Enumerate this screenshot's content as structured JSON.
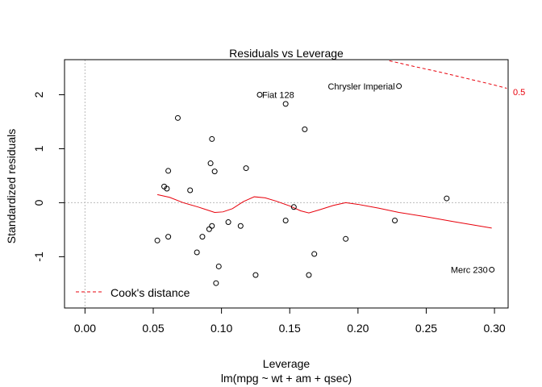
{
  "chart_data": {
    "type": "scatter",
    "title": "Residuals vs Leverage",
    "xlabel": "Leverage",
    "subtitle": "lm(mpg ~ wt + am + qsec)",
    "ylabel": "Standardized residuals",
    "xlim": [
      -0.015,
      0.31
    ],
    "ylim": [
      -1.95,
      2.65
    ],
    "x_ticks": [
      0.0,
      0.05,
      0.1,
      0.15,
      0.2,
      0.25,
      0.3
    ],
    "x_tick_labels": [
      "0.00",
      "0.05",
      "0.10",
      "0.15",
      "0.20",
      "0.25",
      "0.30"
    ],
    "y_ticks": [
      -1,
      0,
      1,
      2
    ],
    "y_tick_labels": [
      "-1",
      "0",
      "1",
      "2"
    ],
    "reference_lines": {
      "horizontal_y": 0,
      "vertical_x": 0
    },
    "grid": false,
    "legend": {
      "position": "bottom-left",
      "entries": [
        {
          "label": "Cook's distance",
          "style": "dashed",
          "color": "#e8000b"
        }
      ]
    },
    "colors": {
      "points": "#000000",
      "smoother": "#e8000b",
      "cooks": "#e8000b",
      "reference": "#bbbbbb"
    },
    "points": [
      {
        "x": 0.053,
        "y": -0.7
      },
      {
        "x": 0.058,
        "y": 0.3
      },
      {
        "x": 0.06,
        "y": 0.26
      },
      {
        "x": 0.061,
        "y": 0.59
      },
      {
        "x": 0.061,
        "y": -0.63
      },
      {
        "x": 0.068,
        "y": 1.57
      },
      {
        "x": 0.077,
        "y": 0.23
      },
      {
        "x": 0.082,
        "y": -0.92
      },
      {
        "x": 0.086,
        "y": -0.63
      },
      {
        "x": 0.091,
        "y": -0.49
      },
      {
        "x": 0.092,
        "y": 0.73
      },
      {
        "x": 0.093,
        "y": 1.18
      },
      {
        "x": 0.093,
        "y": -0.43
      },
      {
        "x": 0.095,
        "y": 0.58
      },
      {
        "x": 0.096,
        "y": -1.49
      },
      {
        "x": 0.098,
        "y": -1.18
      },
      {
        "x": 0.105,
        "y": -0.36
      },
      {
        "x": 0.114,
        "y": -0.43
      },
      {
        "x": 0.118,
        "y": 0.64
      },
      {
        "x": 0.125,
        "y": -1.34
      },
      {
        "x": 0.128,
        "y": 2.0,
        "label": "Fiat 128"
      },
      {
        "x": 0.147,
        "y": 1.83
      },
      {
        "x": 0.147,
        "y": -0.33
      },
      {
        "x": 0.153,
        "y": -0.08
      },
      {
        "x": 0.161,
        "y": 1.36
      },
      {
        "x": 0.164,
        "y": -1.34
      },
      {
        "x": 0.168,
        "y": -0.95
      },
      {
        "x": 0.191,
        "y": -0.67
      },
      {
        "x": 0.227,
        "y": -0.33
      },
      {
        "x": 0.23,
        "y": 2.16,
        "label": "Chrysler Imperial"
      },
      {
        "x": 0.265,
        "y": 0.08
      },
      {
        "x": 0.298,
        "y": -1.24,
        "label": "Merc 230"
      }
    ],
    "smoother": [
      {
        "x": 0.053,
        "y": 0.15
      },
      {
        "x": 0.062,
        "y": 0.1
      },
      {
        "x": 0.072,
        "y": 0.0
      },
      {
        "x": 0.083,
        "y": -0.08
      },
      {
        "x": 0.089,
        "y": -0.13
      },
      {
        "x": 0.095,
        "y": -0.18
      },
      {
        "x": 0.101,
        "y": -0.17
      },
      {
        "x": 0.108,
        "y": -0.11
      },
      {
        "x": 0.116,
        "y": 0.02
      },
      {
        "x": 0.124,
        "y": 0.11
      },
      {
        "x": 0.132,
        "y": 0.09
      },
      {
        "x": 0.14,
        "y": 0.03
      },
      {
        "x": 0.15,
        "y": -0.06
      },
      {
        "x": 0.158,
        "y": -0.15
      },
      {
        "x": 0.164,
        "y": -0.19
      },
      {
        "x": 0.172,
        "y": -0.13
      },
      {
        "x": 0.182,
        "y": -0.05
      },
      {
        "x": 0.191,
        "y": 0.0
      },
      {
        "x": 0.2,
        "y": -0.03
      },
      {
        "x": 0.215,
        "y": -0.1
      },
      {
        "x": 0.23,
        "y": -0.18
      },
      {
        "x": 0.25,
        "y": -0.26
      },
      {
        "x": 0.27,
        "y": -0.35
      },
      {
        "x": 0.298,
        "y": -0.47
      }
    ],
    "cooks_contour": {
      "level_label": "0.5",
      "points": [
        {
          "x": 0.223,
          "y": 2.63
        },
        {
          "x": 0.24,
          "y": 2.53
        },
        {
          "x": 0.26,
          "y": 2.42
        },
        {
          "x": 0.28,
          "y": 2.3
        },
        {
          "x": 0.3,
          "y": 2.18
        },
        {
          "x": 0.309,
          "y": 2.12
        }
      ]
    }
  }
}
